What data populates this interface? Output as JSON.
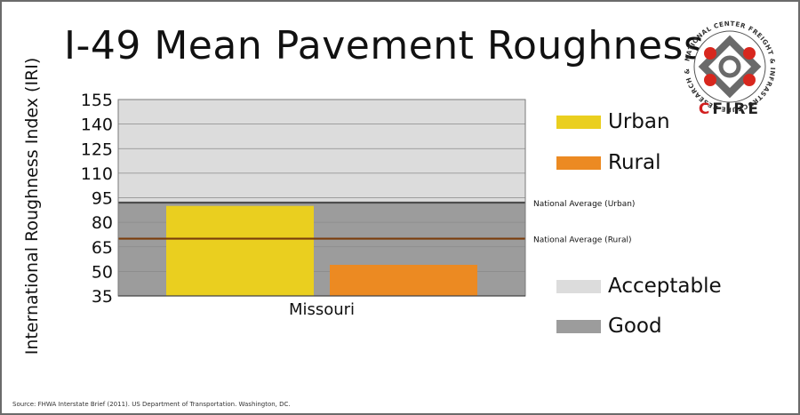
{
  "title": "I-49 Mean Pavement Roughness",
  "source": "Source: FHWA Interstate Brief (2011). US Department of Transportation. Washington, DC.",
  "logo": {
    "ring_text": "NATIONAL CENTER FREIGHT & INFRASTRUCTURE RESEARCH & EDUCATION",
    "wordmark_first": "C",
    "wordmark_rest": "FIRE"
  },
  "colors": {
    "urban": "#eacf1f",
    "rural": "#ec8a22",
    "acceptable": "#dcdcdc",
    "good": "#9c9c9c",
    "urban_line": "#4d4d4d",
    "rural_line": "#7a3d0b"
  },
  "legend": {
    "urban": "Urban",
    "rural": "Rural",
    "acceptable": "Acceptable",
    "good": "Good"
  },
  "chart_data": {
    "type": "bar",
    "title": "I-49 Mean Pavement Roughness",
    "ylabel": "International Roughness Index (IRI)",
    "xlabel": "",
    "categories": [
      "Missouri"
    ],
    "series": [
      {
        "name": "Urban",
        "values": [
          90
        ]
      },
      {
        "name": "Rural",
        "values": [
          54
        ]
      }
    ],
    "ylim": [
      35,
      155
    ],
    "yticks": [
      35,
      50,
      65,
      80,
      95,
      110,
      125,
      140,
      155
    ],
    "bands": [
      {
        "name": "Good",
        "from": 35,
        "to": 92
      },
      {
        "name": "Acceptable",
        "from": 92,
        "to": 155
      }
    ],
    "reference_lines": [
      {
        "label": "National Average (Urban)",
        "value": 92
      },
      {
        "label": "National Average (Rural)",
        "value": 70
      }
    ],
    "grid": true
  }
}
